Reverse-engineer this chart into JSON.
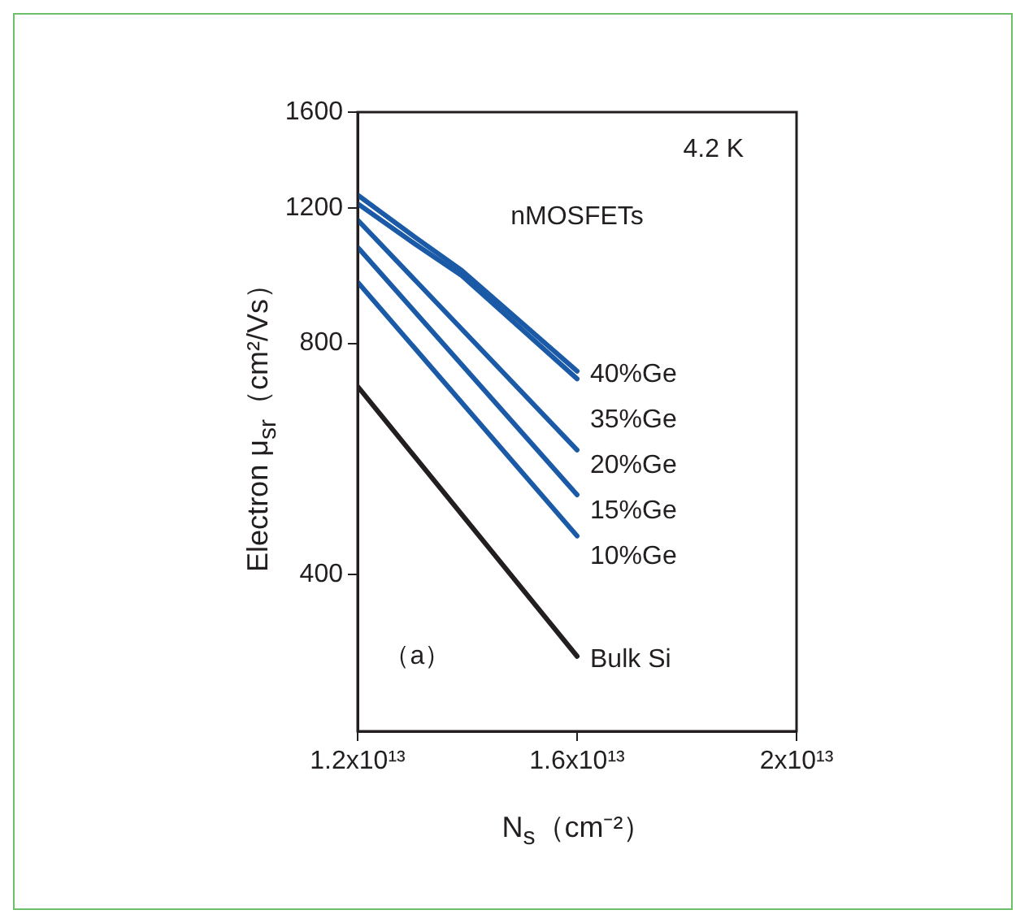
{
  "chart_data": {
    "type": "line",
    "xlabel": "N$_{s}$（cm⁻²）",
    "ylabel": "Electron μ$_{sr}$（cm²/Vs）",
    "annotations": [
      "4.2 K",
      "nMOSFETs",
      "（a）"
    ],
    "log": "y",
    "grid": false,
    "legend": false,
    "marker": "none",
    "line_style": "solid",
    "xlim": [
      12000000000000.0,
      20000000000000.0
    ],
    "xticks": [
      {
        "value": 12000000000000.0,
        "label": "1.2x10¹³"
      },
      {
        "value": 16000000000000.0,
        "label": "1.6x10¹³"
      },
      {
        "value": 20000000000000.0,
        "label": "2x10¹³"
      }
    ],
    "ylim": [
      250,
      1600
    ],
    "yticks": [
      400,
      800,
      1200,
      1600
    ],
    "series": [
      {
        "name": "40%Ge",
        "color": "#1b5aa6",
        "x": [
          12000000000000.0,
          13050000000000.0,
          13900000000000.0,
          16000000000000.0
        ],
        "values": [
          1248,
          1099,
          995,
          736
        ]
      },
      {
        "name": "35%Ge",
        "color": "#1b5aa6",
        "x": [
          12000000000000.0,
          13050000000000.0,
          13900000000000.0,
          16000000000000.0
        ],
        "values": [
          1216,
          1077,
          980,
          719
        ]
      },
      {
        "name": "20%Ge",
        "color": "#1b5aa6",
        "x": [
          12000000000000.0,
          16000000000000.0
        ],
        "values": [
          1158,
          581
        ]
      },
      {
        "name": "15%Ge",
        "color": "#1b5aa6",
        "x": [
          12000000000000.0,
          16000000000000.0
        ],
        "values": [
          1067,
          508
        ]
      },
      {
        "name": "10%Ge",
        "color": "#1b5aa6",
        "x": [
          12000000000000.0,
          16000000000000.0
        ],
        "values": [
          961,
          449
        ]
      },
      {
        "name": "Bulk Si",
        "color": "#231f20",
        "x": [
          12000000000000.0,
          16000000000000.0
        ],
        "values": [
          703,
          313
        ]
      }
    ]
  }
}
